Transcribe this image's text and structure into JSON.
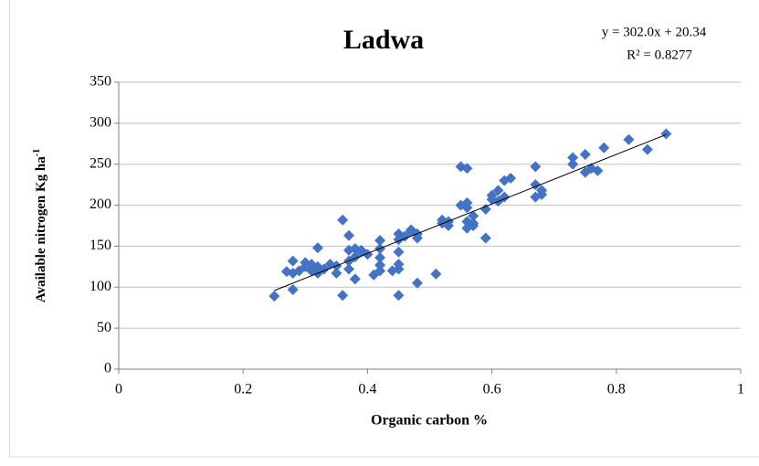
{
  "chart_data": {
    "type": "scatter",
    "title": "Ladwa",
    "equation": "y = 302.0x + 20.34",
    "r_squared": "R² = 0.8277",
    "trendline": {
      "slope": 302.0,
      "intercept": 20.34
    },
    "x_label": "Organic carbon %",
    "y_label": "Available nitrogen Kg ha",
    "y_label_sup": "-1",
    "color": "#4472c4",
    "xlim": [
      0,
      1
    ],
    "xticks": [
      0,
      0.2,
      0.4,
      0.6,
      0.8,
      1
    ],
    "ylim": [
      0,
      350
    ],
    "yticks": [
      0,
      50,
      100,
      150,
      200,
      250,
      300,
      350
    ],
    "grid": true,
    "series": [
      {
        "name": "Ladwa",
        "color": "#4472c4",
        "x": [
          0.25,
          0.27,
          0.28,
          0.28,
          0.28,
          0.29,
          0.3,
          0.3,
          0.31,
          0.31,
          0.32,
          0.32,
          0.32,
          0.33,
          0.34,
          0.35,
          0.35,
          0.36,
          0.36,
          0.37,
          0.37,
          0.37,
          0.37,
          0.38,
          0.38,
          0.38,
          0.39,
          0.39,
          0.4,
          0.41,
          0.42,
          0.42,
          0.42,
          0.42,
          0.42,
          0.44,
          0.45,
          0.45,
          0.45,
          0.45,
          0.45,
          0.45,
          0.46,
          0.47,
          0.47,
          0.48,
          0.48,
          0.48,
          0.51,
          0.52,
          0.52,
          0.53,
          0.53,
          0.55,
          0.55,
          0.56,
          0.56,
          0.56,
          0.56,
          0.56,
          0.57,
          0.57,
          0.57,
          0.59,
          0.59,
          0.6,
          0.6,
          0.61,
          0.61,
          0.62,
          0.62,
          0.63,
          0.67,
          0.67,
          0.67,
          0.68,
          0.68,
          0.73,
          0.73,
          0.75,
          0.75,
          0.76,
          0.77,
          0.78,
          0.82,
          0.85,
          0.88
        ],
        "values": [
          89,
          119,
          132,
          97,
          117,
          120,
          125,
          130,
          128,
          120,
          148,
          117,
          125,
          122,
          128,
          126,
          117,
          182,
          90,
          163,
          145,
          122,
          132,
          110,
          147,
          137,
          143,
          145,
          140,
          115,
          120,
          127,
          136,
          157,
          147,
          120,
          90,
          122,
          128,
          143,
          158,
          165,
          162,
          168,
          170,
          160,
          165,
          105,
          116,
          182,
          178,
          175,
          180,
          247,
          200,
          245,
          203,
          197,
          172,
          180,
          178,
          187,
          175,
          160,
          195,
          207,
          212,
          218,
          205,
          210,
          230,
          233,
          247,
          225,
          210,
          218,
          213,
          258,
          250,
          262,
          240,
          245,
          242,
          270,
          280,
          268,
          287
        ]
      }
    ]
  }
}
